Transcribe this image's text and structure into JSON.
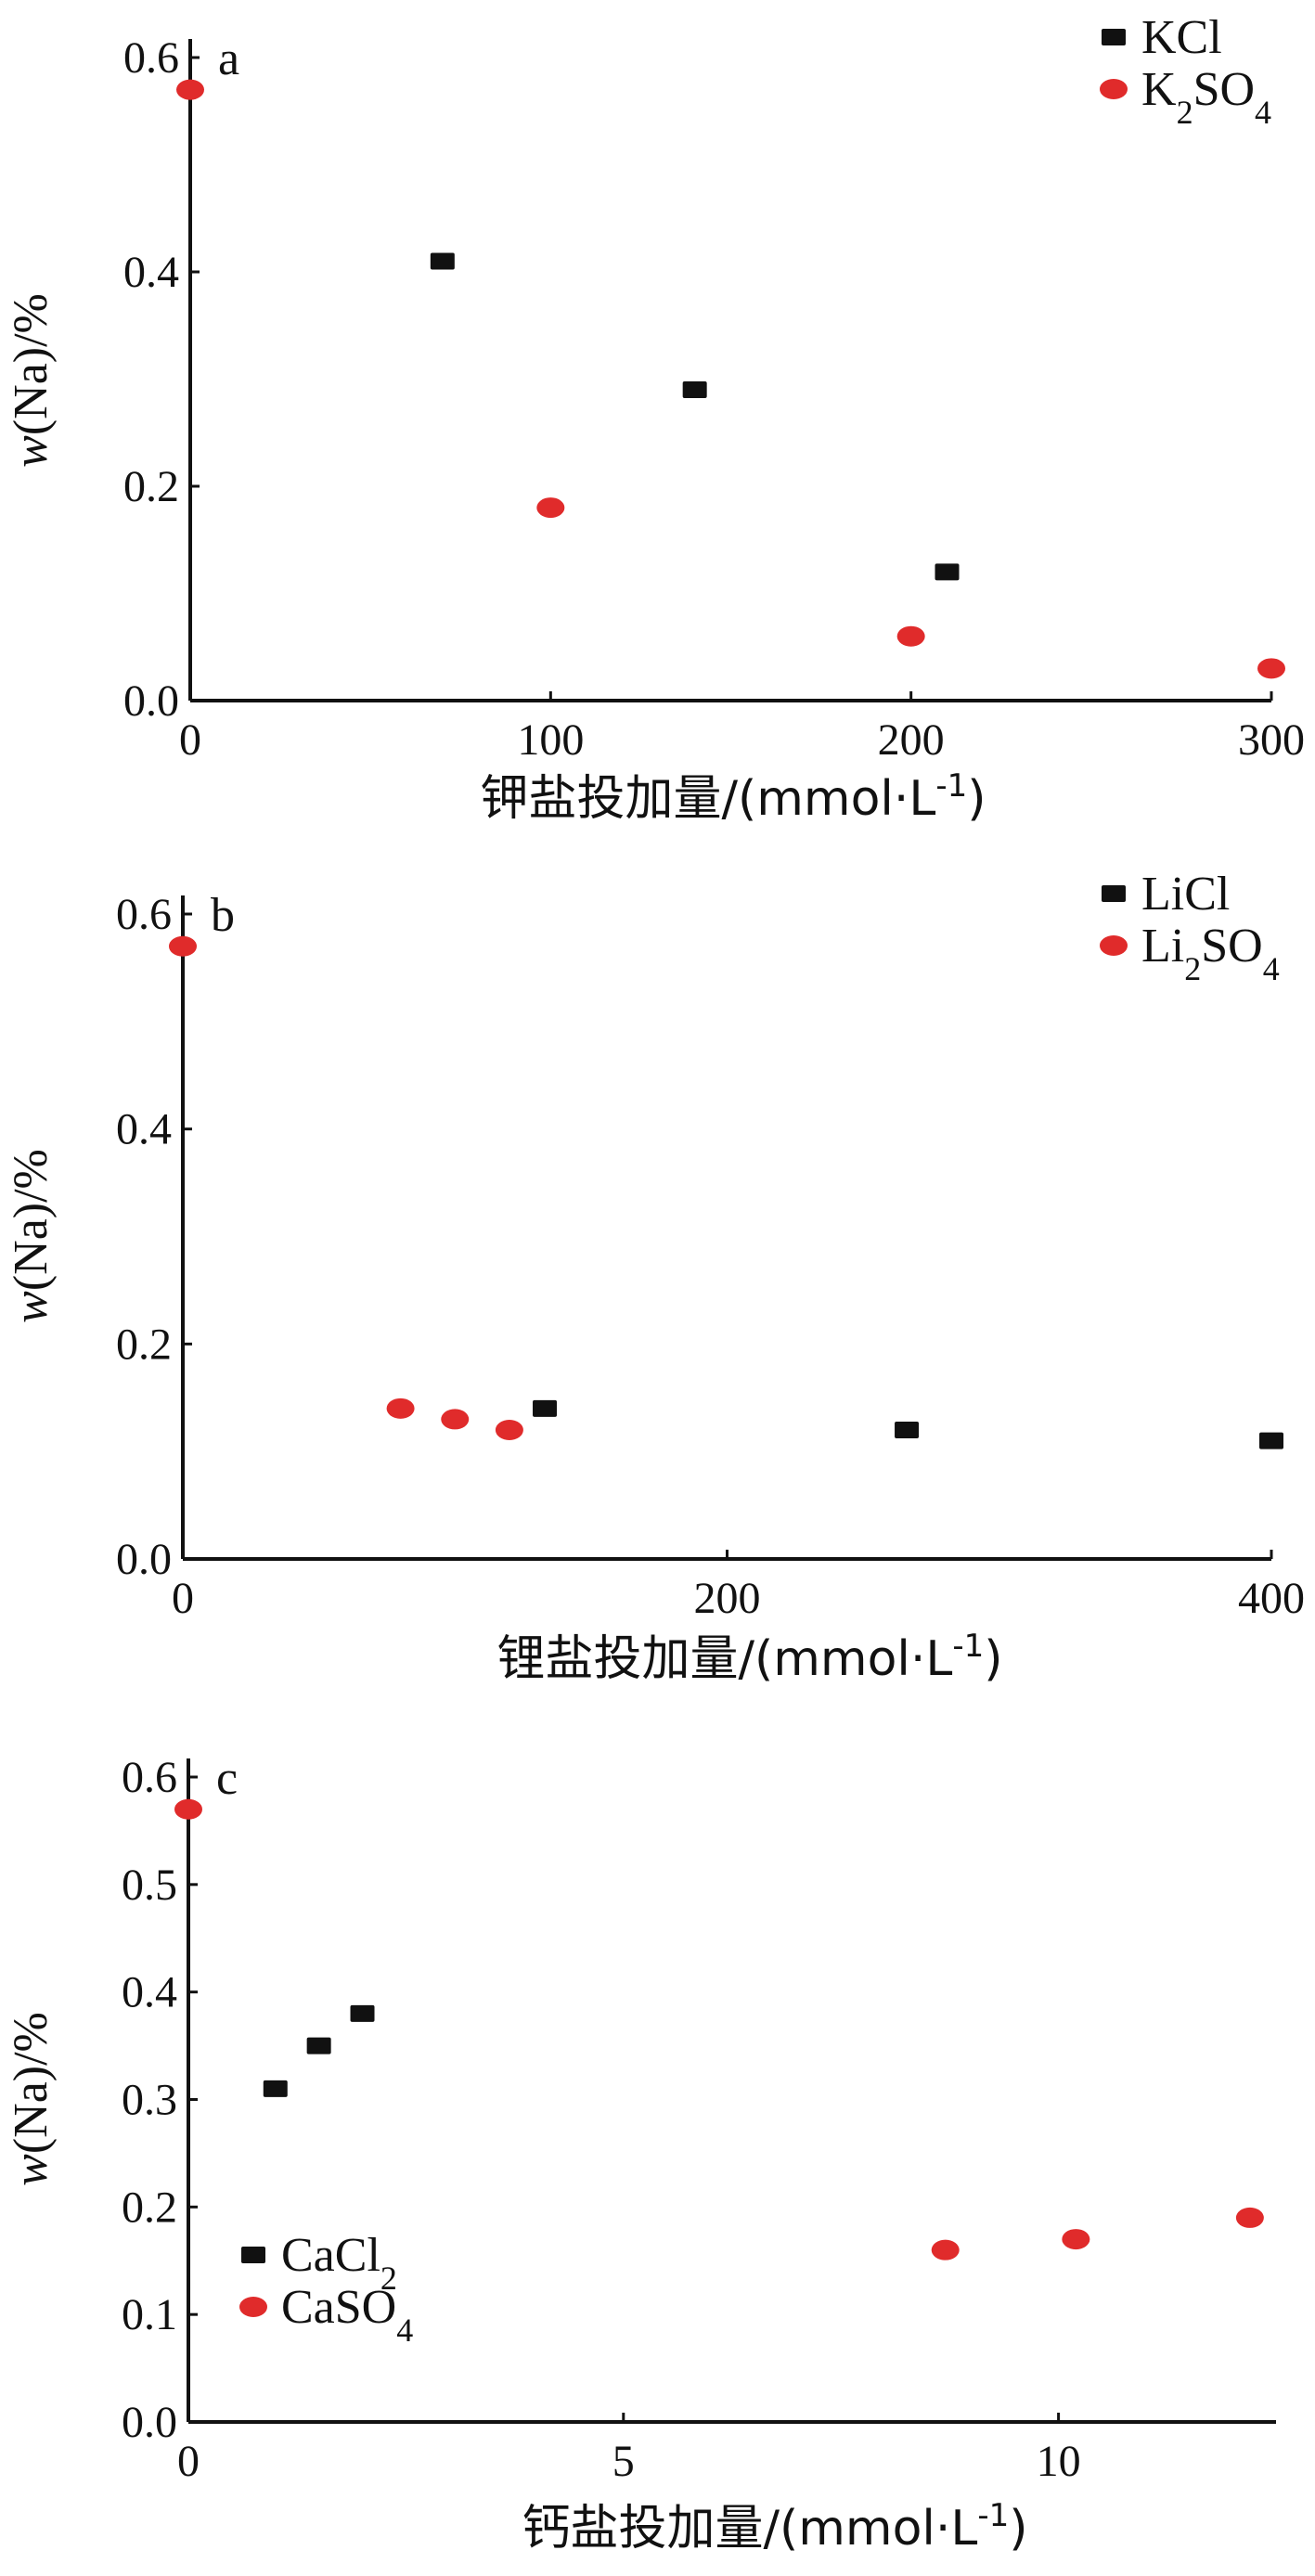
{
  "chart_data": [
    {
      "type": "scatter",
      "panel_label": "a",
      "xlabel": "钾盐投加量/(mmol·L-1)",
      "ylabel": "w(Na)/%",
      "xlim": [
        0,
        300
      ],
      "ylim": [
        0.0,
        0.6
      ],
      "xticks": [
        0,
        100,
        200,
        300
      ],
      "xtick_labels": [
        "0",
        "100",
        "200",
        "300"
      ],
      "yticks": [
        0.0,
        0.2,
        0.4,
        0.6
      ],
      "ytick_labels": [
        "0.0",
        "0.2",
        "0.4",
        "0.6"
      ],
      "legend_position": "top-right",
      "series": [
        {
          "name": "KCl",
          "marker": "square",
          "color": "#111111",
          "x": [
            70,
            140,
            210
          ],
          "y": [
            0.41,
            0.29,
            0.12
          ]
        },
        {
          "name": "K2SO4",
          "marker": "circle",
          "color": "#e02b2b",
          "x": [
            0,
            100,
            200,
            300
          ],
          "y": [
            0.57,
            0.18,
            0.06,
            0.03
          ]
        }
      ]
    },
    {
      "type": "scatter",
      "panel_label": "b",
      "xlabel": "锂盐投加量/(mmol·L-1)",
      "ylabel": "w(Na)/%",
      "xlim": [
        0,
        400
      ],
      "ylim": [
        0.0,
        0.6
      ],
      "xticks": [
        0,
        200,
        400
      ],
      "xtick_labels": [
        "0",
        "200",
        "400"
      ],
      "yticks": [
        0.0,
        0.2,
        0.4,
        0.6
      ],
      "ytick_labels": [
        "0.0",
        "0.2",
        "0.4",
        "0.6"
      ],
      "legend_position": "top-right",
      "series": [
        {
          "name": "LiCl",
          "marker": "square",
          "color": "#111111",
          "x": [
            133,
            266,
            400
          ],
          "y": [
            0.14,
            0.12,
            0.11
          ]
        },
        {
          "name": "Li2SO4",
          "marker": "circle",
          "color": "#e02b2b",
          "x": [
            0,
            80,
            100,
            120
          ],
          "y": [
            0.57,
            0.14,
            0.13,
            0.12
          ]
        }
      ]
    },
    {
      "type": "scatter",
      "panel_label": "c",
      "xlabel": "钙盐投加量/(mmol·L-1)",
      "ylabel": "w(Na)/%",
      "xlim": [
        0,
        12.5
      ],
      "ylim": [
        0.0,
        0.6
      ],
      "xticks": [
        0,
        5,
        10
      ],
      "xtick_labels": [
        "0",
        "5",
        "10"
      ],
      "yticks": [
        0.0,
        0.1,
        0.2,
        0.3,
        0.4,
        0.5,
        0.6
      ],
      "ytick_labels": [
        "0.0",
        "0.1",
        "0.2",
        "0.3",
        "0.4",
        "0.5",
        "0.6"
      ],
      "legend_position": "bottom-left",
      "series": [
        {
          "name": "CaCl2",
          "marker": "square",
          "color": "#111111",
          "x": [
            1.0,
            1.5,
            2.0
          ],
          "y": [
            0.31,
            0.35,
            0.38
          ]
        },
        {
          "name": "CaSO4",
          "marker": "circle",
          "color": "#e02b2b",
          "x": [
            0,
            8.7,
            10.2,
            12.2
          ],
          "y": [
            0.57,
            0.16,
            0.17,
            0.19
          ]
        }
      ]
    }
  ]
}
